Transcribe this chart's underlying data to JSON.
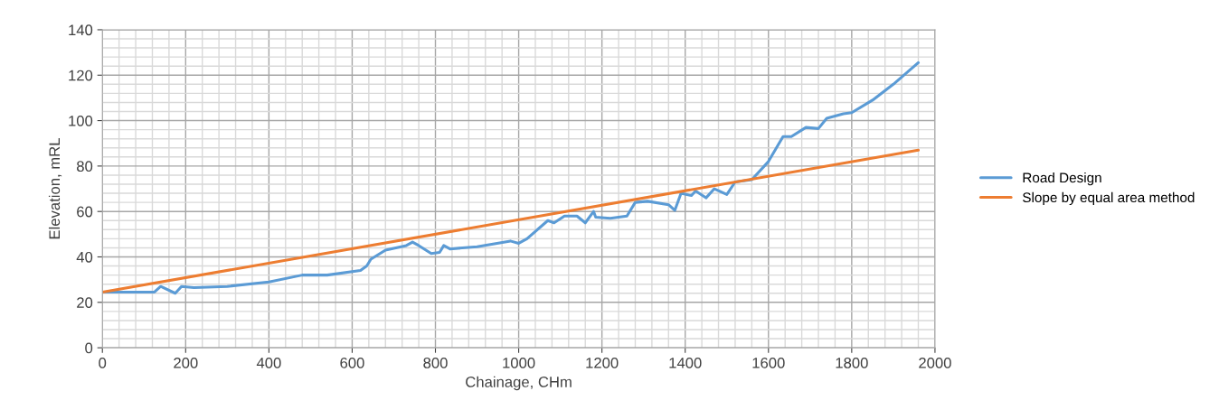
{
  "chart_data": {
    "type": "line",
    "xlabel": "Chainage, CHm",
    "ylabel": "Elevation, mRL",
    "xlim": [
      0,
      2000
    ],
    "xticks": [
      0,
      200,
      400,
      600,
      800,
      1000,
      1200,
      1400,
      1600,
      1800,
      2000
    ],
    "ylim": [
      0,
      140
    ],
    "yticks": [
      0,
      20,
      40,
      60,
      80,
      100,
      120,
      140
    ],
    "grid": true,
    "legend": "right",
    "marker": "none",
    "line_style": "solid",
    "series": [
      {
        "name": "Road Design",
        "color": "#5b9bd5",
        "x": [
          0,
          125,
          140,
          175,
          190,
          220,
          300,
          400,
          480,
          540,
          620,
          635,
          645,
          680,
          730,
          745,
          760,
          790,
          810,
          820,
          835,
          900,
          980,
          1000,
          1020,
          1070,
          1085,
          1110,
          1140,
          1160,
          1180,
          1185,
          1220,
          1260,
          1280,
          1310,
          1360,
          1375,
          1390,
          1415,
          1425,
          1450,
          1470,
          1500,
          1520,
          1560,
          1600,
          1635,
          1655,
          1690,
          1720,
          1740,
          1780,
          1800,
          1850,
          1900,
          1960
        ],
        "values": [
          24.5,
          24.5,
          27,
          24,
          27,
          26.5,
          27,
          29,
          32,
          32,
          34,
          36,
          39,
          43,
          45,
          46.5,
          45,
          41.5,
          42,
          45,
          43.5,
          44.5,
          47,
          46,
          48,
          56,
          55,
          58,
          58,
          55,
          60,
          57.5,
          57,
          58,
          64,
          64.5,
          63,
          60.5,
          68,
          67,
          69,
          66,
          70,
          67.5,
          73,
          74,
          82,
          93,
          93,
          97,
          96.5,
          101,
          103,
          103.5,
          109,
          116,
          125.5
        ]
      },
      {
        "name": "Slope by equal area method",
        "color": "#ed7d31",
        "x": [
          0,
          1960
        ],
        "values": [
          24.5,
          87
        ]
      }
    ]
  }
}
